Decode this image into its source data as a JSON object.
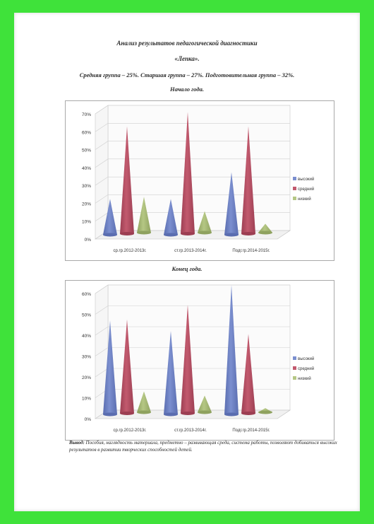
{
  "document": {
    "title": "Анализ результатов педагогической диагностики",
    "subtitle": "«Лепка».",
    "groups": "Средняя группа – 25%. Старшая группа – 27%. Подготовительная группа – 32%.",
    "conclusion_label": "Вывод:",
    "conclusion_text": "Пособия, наглядность материала, предметно – развивающая среда, система работы, позволяют добиваться высоких результатов в развитии творческих способностей детей."
  },
  "chart_data": [
    {
      "type": "bar",
      "title": "Начало года.",
      "categories": [
        "ср.гр.2012-2013г.",
        "ст.гр.2013-2014г.",
        "Подг.гр.2014-2015г."
      ],
      "series": [
        {
          "name": "высокий",
          "values": [
            20,
            20,
            35
          ]
        },
        {
          "name": "средний",
          "values": [
            60,
            68,
            60
          ]
        },
        {
          "name": "низкий",
          "values": [
            20,
            12,
            5
          ]
        }
      ],
      "ylim": [
        0,
        70
      ],
      "yticks": [
        "0%",
        "10%",
        "20%",
        "30%",
        "40%",
        "50%",
        "60%",
        "70%"
      ],
      "legend_position": "right"
    },
    {
      "type": "bar",
      "title": "Конец года.",
      "categories": [
        "ср.гр.2012-2013г.",
        "ст.гр.2013-2014г.",
        "Подг.гр.2014-2015г."
      ],
      "series": [
        {
          "name": "высокий",
          "values": [
            45,
            40,
            62
          ]
        },
        {
          "name": "средний",
          "values": [
            45,
            52,
            38
          ]
        },
        {
          "name": "низкий",
          "values": [
            10,
            8,
            2
          ]
        }
      ],
      "ylim": [
        0,
        60
      ],
      "yticks": [
        "0%",
        "10%",
        "20%",
        "30%",
        "40%",
        "50%",
        "60%"
      ],
      "legend_position": "right"
    }
  ],
  "colors": {
    "series": [
      "#7b8fcf",
      "#c25a6e",
      "#b5c784"
    ],
    "series_dark": [
      "#5a6db0",
      "#9c3e52",
      "#8fa25f"
    ],
    "page_border": "#3fe23a"
  }
}
